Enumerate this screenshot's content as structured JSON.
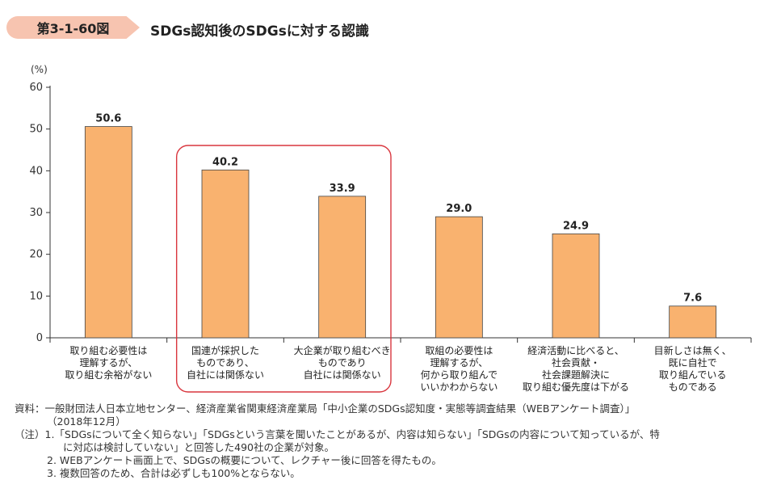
{
  "header": {
    "figure_number": "第3-1-60図",
    "title": "SDGs認知後のSDGsに対する認識"
  },
  "chart_data": {
    "type": "bar",
    "ylabel": "(%)",
    "ylim": [
      0,
      60
    ],
    "yticks": [
      0,
      10,
      20,
      30,
      40,
      50,
      60
    ],
    "bar_color": "#f9b26f",
    "highlight_color": "#d9363e",
    "highlight_categories": [
      1,
      2
    ],
    "categories": [
      [
        "取り組む必要性は",
        "理解するが、",
        "取り組む余裕がない"
      ],
      [
        "国連が採択した",
        "ものであり、",
        "自社には関係ない"
      ],
      [
        "大企業が取り組むべき",
        "ものであり",
        "自社には関係ない"
      ],
      [
        "取組の必要性は",
        "理解するが、",
        "何から取り組んで",
        "いいかわからない"
      ],
      [
        "経済活動に比べると、",
        "社会貢献・",
        "社会課題解決に",
        "取り組む優先度は下がる"
      ],
      [
        "目新しさは無く、",
        "既に自社で",
        "取り組んでいる",
        "ものである"
      ]
    ],
    "values": [
      50.6,
      40.2,
      33.9,
      29.0,
      24.9,
      7.6
    ],
    "value_labels": [
      "50.6",
      "40.2",
      "33.9",
      "29.0",
      "24.9",
      "7.6"
    ]
  },
  "notes": {
    "source_line1": "資料：一般財団法人日本立地センター、経済産業省関東経済産業局「中小企業のSDGs認知度・実態等調査結果（WEBアンケート調査）」",
    "source_line2": "（2018年12月）",
    "note1_line1": "（注）1.「SDGsについて全く知らない」「SDGsという言葉を聞いたことがあるが、内容は知らない」「SDGsの内容について知っているが、特",
    "note1_line2": "に対応は検討していない」と回答した490社の企業が対象。",
    "note2": "2. WEBアンケート画面上で、SDGsの概要について、レクチャー後に回答を得たもの。",
    "note3": "3. 複数回答のため、合計は必ずしも100%とならない。"
  }
}
